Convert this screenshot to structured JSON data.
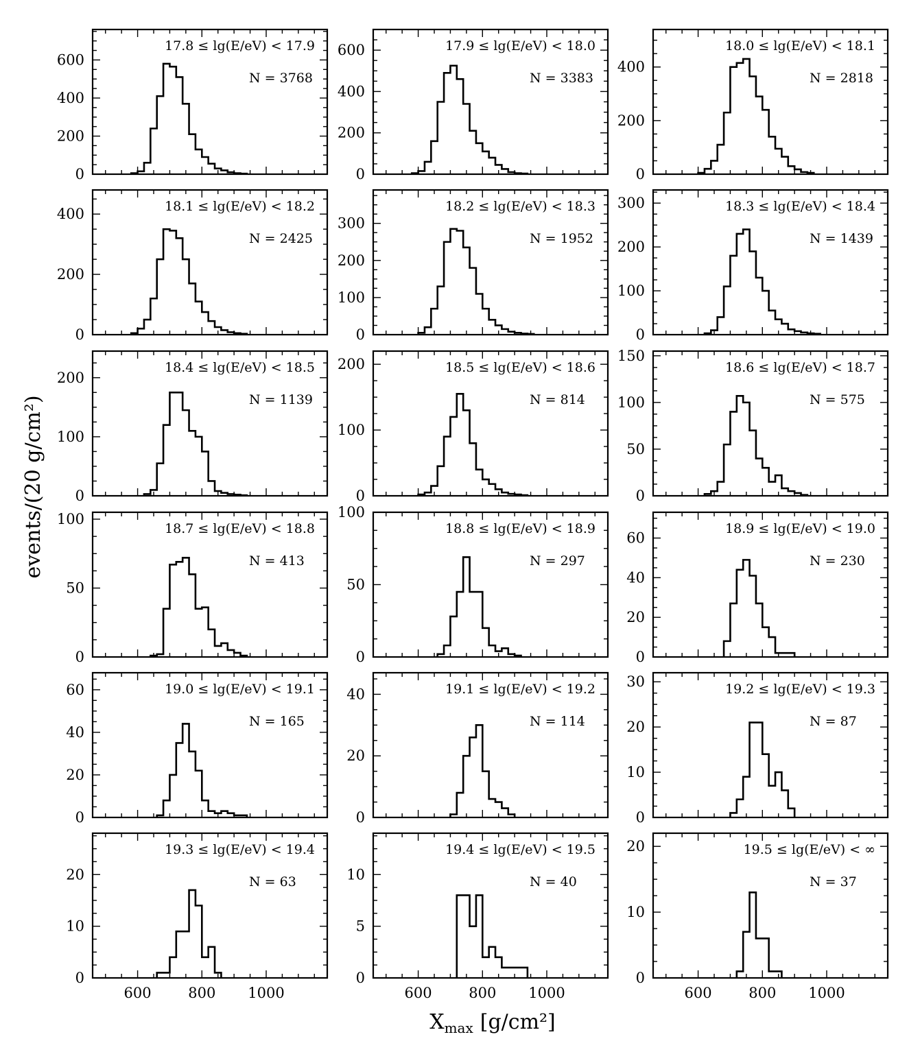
{
  "figure": {
    "ylabel": "events/(20 g/cm²)",
    "xlabel": "X",
    "xlabel_sub": "max",
    "xlabel_unit": "[g/cm²]"
  },
  "chart_data": [
    {
      "type": "histogram",
      "label": "17.8 ≤ lg(E/eV) < 17.9",
      "n": "N = 3768",
      "x_start": 580,
      "bin_width": 20,
      "values": [
        5,
        15,
        60,
        240,
        410,
        580,
        565,
        510,
        370,
        210,
        130,
        90,
        55,
        30,
        20,
        10,
        5,
        3
      ],
      "ylim": [
        0,
        760
      ],
      "yticks": [
        0,
        200,
        400,
        600
      ],
      "xlim": [
        460,
        1190
      ],
      "xticks": [
        600,
        800,
        1000
      ]
    },
    {
      "type": "histogram",
      "label": "17.9 ≤ lg(E/eV) < 18.0",
      "n": "N = 3383",
      "x_start": 580,
      "bin_width": 20,
      "values": [
        5,
        15,
        60,
        160,
        350,
        490,
        525,
        460,
        340,
        210,
        150,
        110,
        80,
        45,
        25,
        10,
        5,
        3
      ],
      "ylim": [
        0,
        700
      ],
      "yticks": [
        0,
        200,
        400,
        600
      ],
      "xlim": [
        460,
        1190
      ],
      "xticks": [
        600,
        800,
        1000
      ]
    },
    {
      "type": "histogram",
      "label": "18.0 ≤ lg(E/eV) < 18.1",
      "n": "N = 2818",
      "x_start": 600,
      "bin_width": 20,
      "values": [
        5,
        20,
        50,
        110,
        230,
        400,
        415,
        430,
        365,
        290,
        240,
        140,
        95,
        65,
        30,
        18,
        8,
        5
      ],
      "ylim": [
        0,
        540
      ],
      "yticks": [
        0,
        200,
        400
      ],
      "xlim": [
        460,
        1190
      ],
      "xticks": [
        600,
        800,
        1000
      ]
    },
    {
      "type": "histogram",
      "label": "18.1 ≤ lg(E/eV) < 18.2",
      "n": "N = 2425",
      "x_start": 580,
      "bin_width": 20,
      "values": [
        5,
        20,
        50,
        120,
        250,
        350,
        345,
        320,
        250,
        170,
        110,
        75,
        45,
        25,
        15,
        8,
        5,
        3
      ],
      "ylim": [
        0,
        480
      ],
      "yticks": [
        0,
        200,
        400
      ],
      "xlim": [
        460,
        1190
      ],
      "xticks": [
        600,
        800,
        1000
      ]
    },
    {
      "type": "histogram",
      "label": "18.2 ≤ lg(E/eV) < 18.3",
      "n": "N = 1952",
      "x_start": 600,
      "bin_width": 20,
      "values": [
        5,
        20,
        70,
        130,
        250,
        285,
        280,
        235,
        180,
        110,
        70,
        40,
        25,
        15,
        8,
        5,
        3,
        2
      ],
      "ylim": [
        0,
        390
      ],
      "yticks": [
        0,
        100,
        200,
        300
      ],
      "xlim": [
        460,
        1190
      ],
      "xticks": [
        600,
        800,
        1000
      ]
    },
    {
      "type": "histogram",
      "label": "18.3 ≤ lg(E/eV) < 18.4",
      "n": "N = 1439",
      "x_start": 620,
      "bin_width": 20,
      "values": [
        3,
        10,
        40,
        110,
        180,
        230,
        240,
        190,
        130,
        100,
        55,
        35,
        25,
        12,
        8,
        5,
        3,
        2
      ],
      "ylim": [
        0,
        330
      ],
      "yticks": [
        0,
        100,
        200,
        300
      ],
      "xlim": [
        460,
        1190
      ],
      "xticks": [
        600,
        800,
        1000
      ]
    },
    {
      "type": "histogram",
      "label": "18.4 ≤ lg(E/eV) < 18.5",
      "n": "N = 1139",
      "x_start": 620,
      "bin_width": 20,
      "values": [
        3,
        10,
        55,
        120,
        175,
        175,
        145,
        110,
        100,
        75,
        25,
        8,
        5,
        3,
        2,
        1
      ],
      "ylim": [
        0,
        245
      ],
      "yticks": [
        0,
        100,
        200
      ],
      "xlim": [
        460,
        1190
      ],
      "xticks": [
        600,
        800,
        1000
      ]
    },
    {
      "type": "histogram",
      "label": "18.5 ≤ lg(E/eV) < 18.6",
      "n": "N = 814",
      "x_start": 600,
      "bin_width": 20,
      "values": [
        2,
        5,
        15,
        45,
        90,
        120,
        155,
        130,
        80,
        40,
        25,
        18,
        10,
        5,
        3,
        2,
        1
      ],
      "ylim": [
        0,
        220
      ],
      "yticks": [
        0,
        100,
        200
      ],
      "xlim": [
        460,
        1190
      ],
      "xticks": [
        600,
        800,
        1000
      ]
    },
    {
      "type": "histogram",
      "label": "18.6 ≤ lg(E/eV) < 18.7",
      "n": "N = 575",
      "x_start": 620,
      "bin_width": 20,
      "values": [
        2,
        5,
        15,
        55,
        90,
        107,
        100,
        70,
        40,
        30,
        15,
        22,
        8,
        5,
        3,
        1
      ],
      "ylim": [
        0,
        155
      ],
      "yticks": [
        0,
        50,
        100,
        150
      ],
      "xlim": [
        460,
        1190
      ],
      "xticks": [
        600,
        800,
        1000
      ]
    },
    {
      "type": "histogram",
      "label": "18.7 ≤ lg(E/eV) < 18.8",
      "n": "N = 413",
      "x_start": 640,
      "bin_width": 20,
      "values": [
        1,
        2,
        35,
        67,
        69,
        72,
        60,
        35,
        36,
        20,
        8,
        10,
        5,
        3,
        1
      ],
      "ylim": [
        0,
        105
      ],
      "yticks": [
        0,
        50,
        100
      ],
      "xlim": [
        460,
        1190
      ],
      "xticks": [
        600,
        800,
        1000
      ]
    },
    {
      "type": "histogram",
      "label": "18.8 ≤ lg(E/eV) < 18.9",
      "n": "N = 297",
      "x_start": 660,
      "bin_width": 20,
      "values": [
        2,
        8,
        28,
        45,
        69,
        45,
        45,
        20,
        8,
        4,
        6,
        2,
        1
      ],
      "ylim": [
        0,
        100
      ],
      "yticks": [
        0,
        50,
        100
      ],
      "xlim": [
        460,
        1190
      ],
      "xticks": [
        600,
        800,
        1000
      ]
    },
    {
      "type": "histogram",
      "label": "18.9 ≤ lg(E/eV) < 19.0",
      "n": "N = 230",
      "x_start": 680,
      "bin_width": 20,
      "values": [
        8,
        27,
        44,
        49,
        41,
        27,
        15,
        10,
        2,
        2,
        2
      ],
      "ylim": [
        0,
        73
      ],
      "yticks": [
        0,
        20,
        40,
        60
      ],
      "xlim": [
        460,
        1190
      ],
      "xticks": [
        600,
        800,
        1000
      ]
    },
    {
      "type": "histogram",
      "label": "19.0 ≤ lg(E/eV) < 19.1",
      "n": "N = 165",
      "x_start": 660,
      "bin_width": 20,
      "values": [
        1,
        8,
        20,
        35,
        44,
        31,
        22,
        8,
        3,
        2,
        3,
        2,
        1,
        1
      ],
      "ylim": [
        0,
        68
      ],
      "yticks": [
        0,
        20,
        40,
        60
      ],
      "xlim": [
        460,
        1190
      ],
      "xticks": [
        600,
        800,
        1000
      ]
    },
    {
      "type": "histogram",
      "label": "19.1 ≤ lg(E/eV) < 19.2",
      "n": "N = 114",
      "x_start": 700,
      "bin_width": 20,
      "values": [
        1,
        8,
        20,
        26,
        30,
        15,
        6,
        5,
        3,
        1
      ],
      "ylim": [
        0,
        47
      ],
      "yticks": [
        0,
        20,
        40
      ],
      "xlim": [
        460,
        1190
      ],
      "xticks": [
        600,
        800,
        1000
      ]
    },
    {
      "type": "histogram",
      "label": "19.2 ≤ lg(E/eV) < 19.3",
      "n": "N = 87",
      "x_start": 700,
      "bin_width": 20,
      "values": [
        1,
        4,
        9,
        21,
        21,
        14,
        7,
        10,
        6,
        2
      ],
      "ylim": [
        0,
        32
      ],
      "yticks": [
        0,
        10,
        20,
        30
      ],
      "xlim": [
        460,
        1190
      ],
      "xticks": [
        600,
        800,
        1000
      ]
    },
    {
      "type": "histogram",
      "label": "19.3 ≤ lg(E/eV) < 19.4",
      "n": "N = 63",
      "x_start": 660,
      "bin_width": 20,
      "values": [
        1,
        1,
        4,
        9,
        9,
        17,
        14,
        4,
        6,
        1
      ],
      "ylim": [
        0,
        28
      ],
      "yticks": [
        0,
        10,
        20
      ],
      "xlim": [
        460,
        1190
      ],
      "xticks": [
        600,
        800,
        1000
      ]
    },
    {
      "type": "histogram",
      "label": "19.4 ≤ lg(E/eV) < 19.5",
      "n": "N = 40",
      "x_start": 720,
      "bin_width": 20,
      "values": [
        8,
        8,
        5,
        8,
        2,
        3,
        2,
        1,
        1,
        1,
        1
      ],
      "ylim": [
        0,
        14
      ],
      "yticks": [
        0,
        5,
        10
      ],
      "xlim": [
        460,
        1190
      ],
      "xticks": [
        600,
        800,
        1000
      ]
    },
    {
      "type": "histogram",
      "label": "19.5 ≤ lg(E/eV) < ∞",
      "n": "N = 37",
      "x_start": 720,
      "bin_width": 20,
      "values": [
        1,
        7,
        13,
        6,
        6,
        1,
        1
      ],
      "ylim": [
        0,
        22
      ],
      "yticks": [
        0,
        10,
        20
      ],
      "xlim": [
        460,
        1190
      ],
      "xticks": [
        600,
        800,
        1000
      ]
    }
  ]
}
